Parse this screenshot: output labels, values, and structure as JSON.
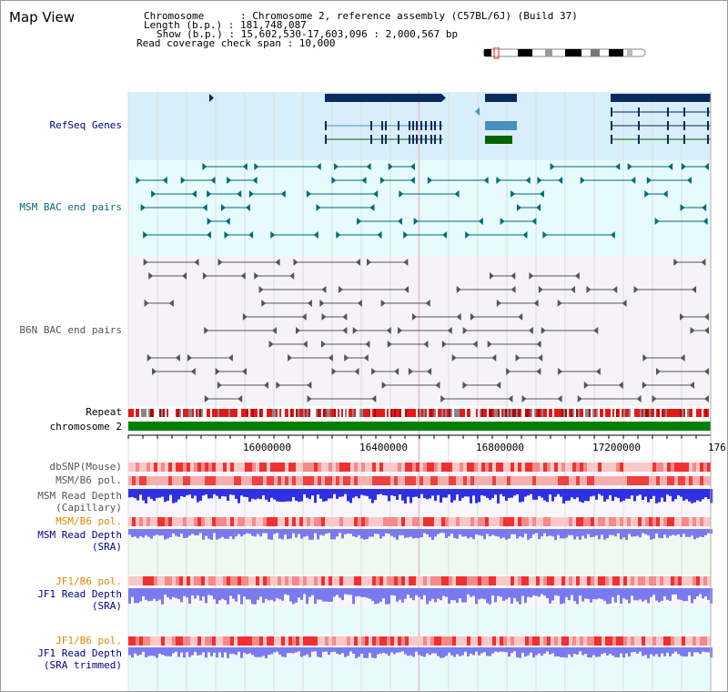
{
  "panel": {
    "title": "Map View"
  },
  "info": {
    "chromosome": "Chromosome      : Chromosome 2, reference assembly (C57BL/6J) (Build 37)",
    "length": "Length (b.p.) : 181,748,087",
    "show": "Show (b.p.) : 15,602,530-17,603,096 : 2,000,567 bp",
    "read_coverage": "Read coverage check span : 10,000"
  },
  "tracks": {
    "refseq": "RefSeq Genes",
    "msm_bac": "MSM BAC end pairs",
    "b6n_bac": "B6N BAC end pairs",
    "repeat": "Repeat",
    "chromosome": "chromosome 2",
    "dbsnp": "dbSNP(Mouse)",
    "msm_b6_pol": "MSM/B6 pol.",
    "msm_read_depth_cap_1": "MSM Read Depth",
    "msm_read_depth_cap_2": "(Capillary)",
    "msm_b6_pol_2": "MSM/B6 pol.",
    "msm_read_depth_sra_1": "MSM Read Depth",
    "msm_read_depth_sra_2": "(SRA)",
    "jf1_b6_pol": "JF1/B6 pol.",
    "jf1_read_depth_sra_1": "JF1 Read Depth",
    "jf1_read_depth_sra_2": "(SRA)",
    "jf1_b6_pol_2": "JF1/B6 pol.",
    "jf1_read_depth_trim_1": "JF1 Read Depth",
    "jf1_read_depth_trim_2": "(SRA trimmed)"
  },
  "ruler": {
    "ticks": [
      "16000000",
      "16400000",
      "16800000",
      "17200000",
      "176"
    ]
  },
  "colors": {
    "refseq_bg": "#d8eefa",
    "bac_bg": "#e6fbfb",
    "b6n_bg": "#f5f3f7",
    "label_blue": "#00008b",
    "label_teal": "#006b7a",
    "label_orange": "#e08a00",
    "gene_dark": "#0a2a5e",
    "gene_mid": "#4a8fbf",
    "gene_green": "#006400",
    "bac_teal": "#006b7a",
    "bac_gray": "#555555",
    "depth_blue": "#2f2fe6",
    "depth_light": "#7a7af0",
    "pol_red": "#ee2222",
    "chrom_green": "#008000"
  }
}
